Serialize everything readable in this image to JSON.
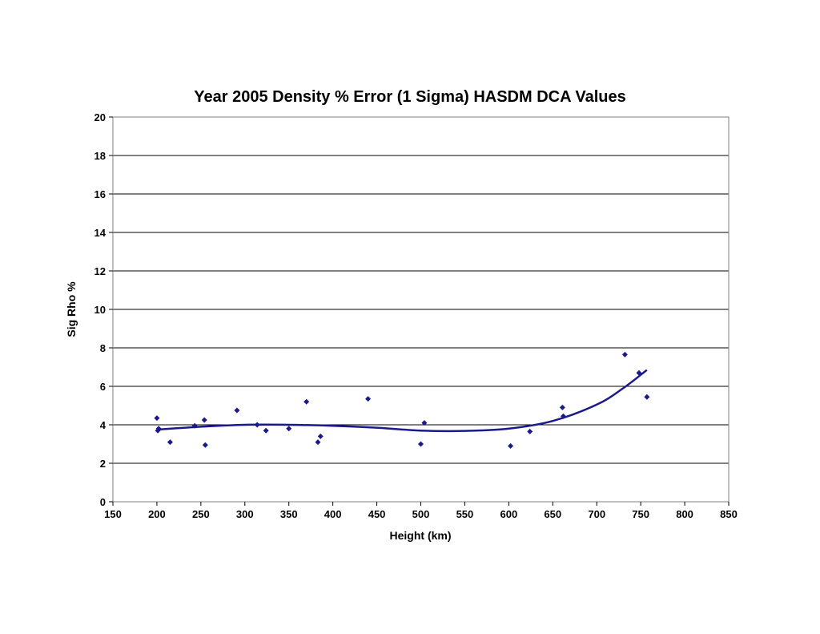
{
  "chart_data": {
    "type": "scatter",
    "title": "Year 2005 Density % Error (1 Sigma) HASDM DCA Values",
    "xlabel": "Height (km)",
    "ylabel": "Sig Rho %",
    "xlim": [
      150,
      850
    ],
    "ylim": [
      0,
      20
    ],
    "xticks": [
      150,
      200,
      250,
      300,
      350,
      400,
      450,
      500,
      550,
      600,
      650,
      700,
      750,
      800,
      850
    ],
    "yticks": [
      0,
      2,
      4,
      6,
      8,
      10,
      12,
      14,
      16,
      18,
      20
    ],
    "grid": "horizontal",
    "legend": "none",
    "colors": {
      "points": "#1a1a8c",
      "trendline": "#1a1a8c",
      "grid": "#000000"
    },
    "series": [
      {
        "values_kind": "points",
        "points": [
          [
            200,
            4.35
          ],
          [
            201,
            3.7
          ],
          [
            202,
            3.8
          ],
          [
            215,
            3.1
          ],
          [
            243,
            3.95
          ],
          [
            254,
            4.25
          ],
          [
            255,
            2.95
          ],
          [
            291,
            4.75
          ],
          [
            314,
            4.0
          ],
          [
            324,
            3.7
          ],
          [
            350,
            3.8
          ],
          [
            370,
            5.2
          ],
          [
            383,
            3.1
          ],
          [
            386,
            3.4
          ],
          [
            440,
            5.35
          ],
          [
            500,
            3.0
          ],
          [
            504,
            4.1
          ],
          [
            602,
            2.9
          ],
          [
            624,
            3.65
          ],
          [
            661,
            4.9
          ],
          [
            662,
            4.45
          ],
          [
            732,
            7.65
          ],
          [
            748,
            6.7
          ],
          [
            757,
            5.45
          ]
        ]
      },
      {
        "values_kind": "trendline",
        "points": [
          [
            200,
            3.75
          ],
          [
            250,
            3.9
          ],
          [
            300,
            4.0
          ],
          [
            350,
            4.0
          ],
          [
            400,
            3.95
          ],
          [
            450,
            3.85
          ],
          [
            500,
            3.7
          ],
          [
            550,
            3.68
          ],
          [
            600,
            3.8
          ],
          [
            650,
            4.2
          ],
          [
            700,
            5.05
          ],
          [
            730,
            5.9
          ],
          [
            757,
            6.85
          ]
        ]
      }
    ]
  }
}
